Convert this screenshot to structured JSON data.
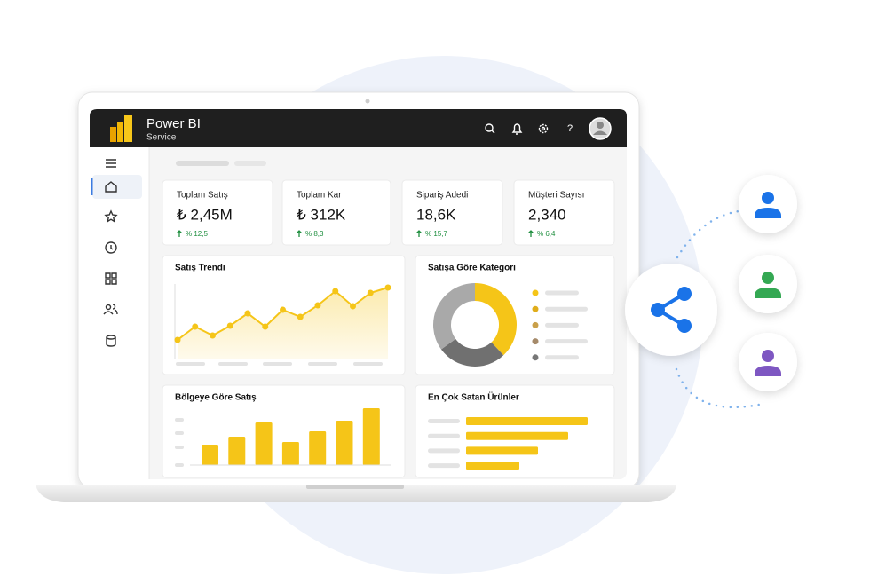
{
  "header": {
    "title": "Power BI",
    "subtitle": "Service"
  },
  "kpis": [
    {
      "label": "Toplam Satış",
      "value": "₺ 2,45M",
      "change": "% 12,5"
    },
    {
      "label": "Toplam Kar",
      "value": "₺ 312K",
      "change": "% 8,3"
    },
    {
      "label": "Sipariş Adedi",
      "value": "18,6K",
      "change": "% 15,7"
    },
    {
      "label": "Müşteri Sayısı",
      "value": "2,340",
      "change": "% 6,4"
    }
  ],
  "panels": {
    "trend": {
      "title": "Satış Trendi",
      "values": [
        22,
        37,
        27,
        38,
        52,
        37,
        56,
        48,
        61,
        77,
        60,
        75,
        81
      ]
    },
    "category": {
      "title": "Satışa Göre Kategori",
      "values": [
        38,
        27,
        35
      ]
    },
    "region": {
      "title": "Bölgeye Göre Satış",
      "values": [
        23,
        32,
        48,
        26,
        38,
        50,
        64
      ]
    },
    "top_products": {
      "title": "En Çok Satan Ürünler",
      "values": [
        137,
        115,
        81,
        60
      ]
    }
  }
}
